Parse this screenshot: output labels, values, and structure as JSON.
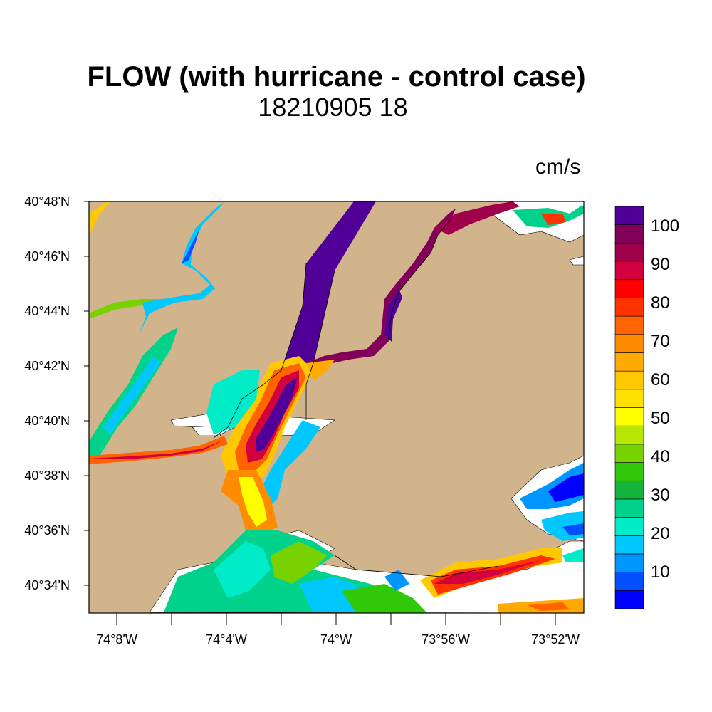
{
  "title": "FLOW (with hurricane - control case)",
  "subtitle": "18210905 18",
  "units": "cm/s",
  "map": {
    "lat_labels": [
      "40°48'N",
      "40°46'N",
      "40°44'N",
      "40°42'N",
      "40°40'N",
      "40°38'N",
      "40°36'N",
      "40°34'N"
    ],
    "lon_labels": [
      "74°8'W",
      "74°4'W",
      "74°W",
      "73°56'W",
      "73°52'W"
    ],
    "land_color": "#d2b48c",
    "water_color": "#ffffff"
  },
  "colorbar": {
    "labels": [
      "100",
      "90",
      "80",
      "70",
      "60",
      "50",
      "40",
      "30",
      "20",
      "10"
    ],
    "colors": [
      "#0000ff",
      "#0050ff",
      "#0096ff",
      "#00c8ff",
      "#00ebc8",
      "#00d28c",
      "#14b43c",
      "#32c80a",
      "#78d200",
      "#b9e600",
      "#ffff00",
      "#ffe100",
      "#ffc800",
      "#ffaa00",
      "#ff8c00",
      "#ff6400",
      "#ff3200",
      "#ff0000",
      "#d2003c",
      "#a0004b",
      "#82005a",
      "#500096"
    ]
  }
}
